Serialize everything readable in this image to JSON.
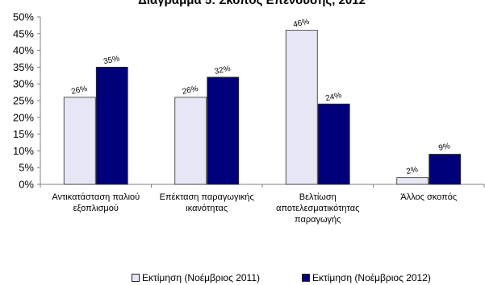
{
  "chart_data": {
    "type": "bar",
    "title": "Διάγραμμα 5: Σκοπός Επένδυσης, 2012",
    "categories": [
      [
        "Αντικατάσταση παλιού",
        "εξοπλισμού"
      ],
      [
        "Επέκταση  παραγωγικής",
        "ικανότητας"
      ],
      [
        "Βελτίωση",
        "αποτελεσματικότητας",
        "παραγωγής"
      ],
      [
        "Άλλος σκοπός"
      ]
    ],
    "series": [
      {
        "name": "Εκτίμηση (Νοέμβριος 2011)",
        "values": [
          26,
          26,
          46,
          2
        ],
        "labels": [
          "26%",
          "26%",
          "46%",
          "2%"
        ],
        "color": "#e6e6f5"
      },
      {
        "name": "Εκτίμηση (Νοέμβριος 2012)",
        "values": [
          35,
          32,
          24,
          9
        ],
        "labels": [
          "35%",
          "32%",
          "24%",
          "9%"
        ],
        "color": "#00007a"
      }
    ],
    "ylim": [
      0,
      50
    ],
    "yticks": [
      "0%",
      "5%",
      "10%",
      "15%",
      "20%",
      "25%",
      "30%",
      "35%",
      "40%",
      "45%",
      "50%"
    ],
    "ytick_values": [
      0,
      5,
      10,
      15,
      20,
      25,
      30,
      35,
      40,
      45,
      50
    ],
    "grid": false,
    "legend_position": "bottom"
  }
}
